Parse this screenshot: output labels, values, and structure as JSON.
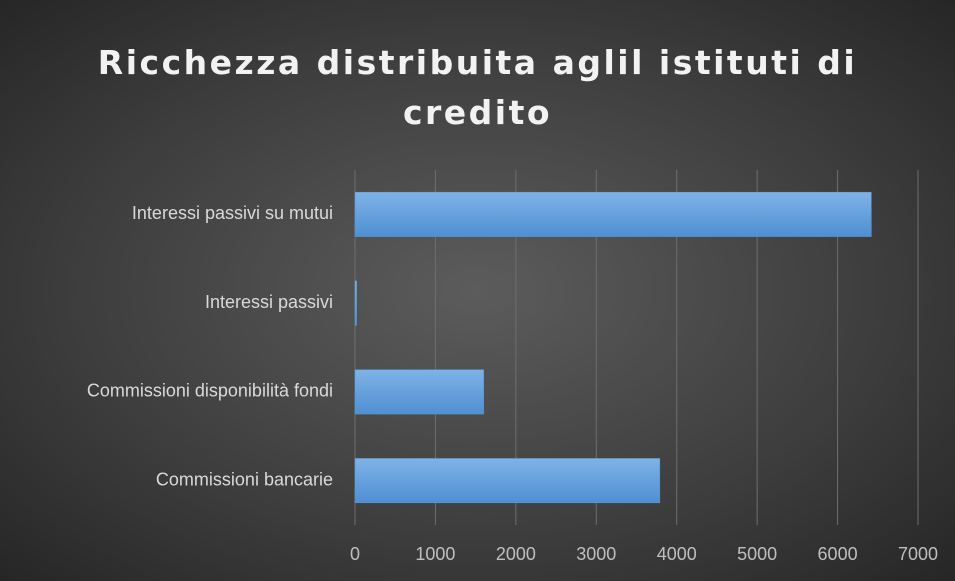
{
  "chart_data": {
    "type": "barh",
    "title": "Ricchezza distribuita aglil istituti di credito",
    "categories": [
      "Interessi passivi su mutui",
      "Interessi passivi",
      "Commissioni disponibilità fondi",
      "Commissioni bancarie"
    ],
    "values": [
      6420,
      20,
      1600,
      3790
    ],
    "color": "#5b9bd5",
    "xlim": [
      0,
      7000
    ],
    "xticks": [
      0,
      1000,
      2000,
      3000,
      4000,
      5000,
      6000,
      7000
    ],
    "grid": true
  }
}
